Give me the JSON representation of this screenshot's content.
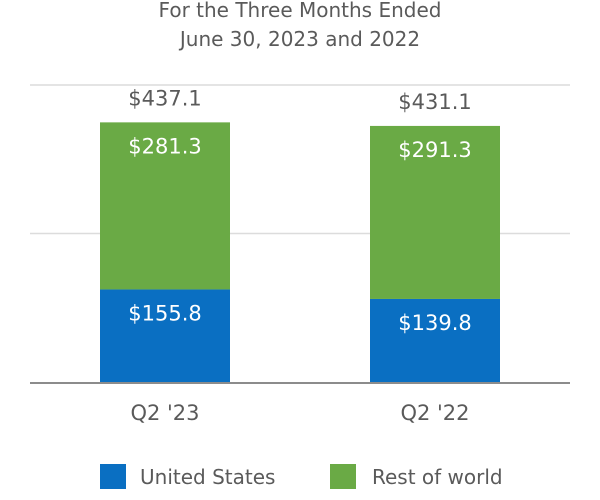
{
  "chart_data": {
    "type": "bar",
    "stacked": true,
    "title_lines": [
      "For the Three Months Ended",
      "June 30, 2023 and 2022"
    ],
    "categories": [
      "Q2 '23",
      "Q2 '22"
    ],
    "series": [
      {
        "name": "United States",
        "values": [
          155.8,
          139.8
        ],
        "labels": [
          "$155.8",
          "$139.8"
        ],
        "color": "#0a6fc2"
      },
      {
        "name": "Rest of world",
        "values": [
          281.3,
          291.3
        ],
        "labels": [
          "$281.3",
          "$291.3"
        ],
        "color": "#6aaa45"
      }
    ],
    "totals": [
      437.1,
      431.1
    ],
    "total_labels": [
      "$437.1",
      "$431.1"
    ],
    "ylim": [
      0,
      500
    ],
    "gridlines": [
      0,
      250,
      500
    ],
    "legend_position": "bottom",
    "colors": {
      "text": "#5a5a5a",
      "grid": "#dcdcdc",
      "axis": "#8c8c8c"
    }
  }
}
